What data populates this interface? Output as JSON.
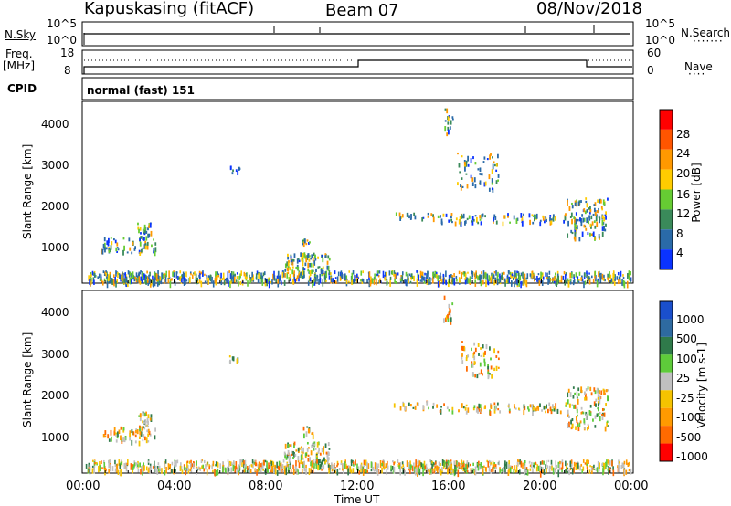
{
  "header": {
    "station": "Kapuskasing (fitACF)",
    "beam": "Beam 07",
    "date": "08/Nov/2018"
  },
  "top_panels": {
    "nsky_label": "N.Sky",
    "nsky_ticks": [
      "10^5",
      "10^0"
    ],
    "nsearch_label": "N.Search",
    "nsearch_ticks": [
      "10^5",
      "10^0"
    ],
    "freq_label": "Freq.",
    "freq_unit": "[MHz]",
    "freq_ticks": [
      "18",
      "8"
    ],
    "nave_label": "Nave",
    "nave_ticks": [
      "60",
      "0"
    ],
    "cpid_label": "CPID",
    "cpid_text": "normal (fast) 151"
  },
  "chart_data": [
    {
      "type": "heatmap",
      "name": "power",
      "ylabel": "Slant Range [km]",
      "yticks": [
        "4000",
        "3000",
        "2000",
        "1000"
      ],
      "colorbar_label": "Power [dB]",
      "colorbar_ticks": [
        "28",
        "24",
        "20",
        "16",
        "12",
        "8",
        "4"
      ],
      "colorbar_colors": [
        "#ff0000",
        "#ff5500",
        "#ff9900",
        "#ffcc00",
        "#66cc33",
        "#3a8a5a",
        "#2a6aa8",
        "#0a33ff"
      ]
    },
    {
      "type": "heatmap",
      "name": "velocity",
      "ylabel": "Slant Range [km]",
      "yticks": [
        "4000",
        "3000",
        "2000",
        "1000"
      ],
      "colorbar_label": "Velocity [m s-1]",
      "colorbar_ticks": [
        "1000",
        "500",
        "100",
        "25",
        "-25",
        "-100",
        "-500",
        "-1000"
      ],
      "colorbar_colors": [
        "#1a4fcc",
        "#2e6aa0",
        "#2f7a4a",
        "#5ecb3a",
        "#c0c0c0",
        "#f5c300",
        "#ff9a00",
        "#ff6a00",
        "#ff0000"
      ]
    }
  ],
  "x_axis": {
    "ticks": [
      "00:00",
      "04:00",
      "08:00",
      "12:00",
      "16:00",
      "20:00",
      "00:00"
    ],
    "label": "Time UT"
  }
}
